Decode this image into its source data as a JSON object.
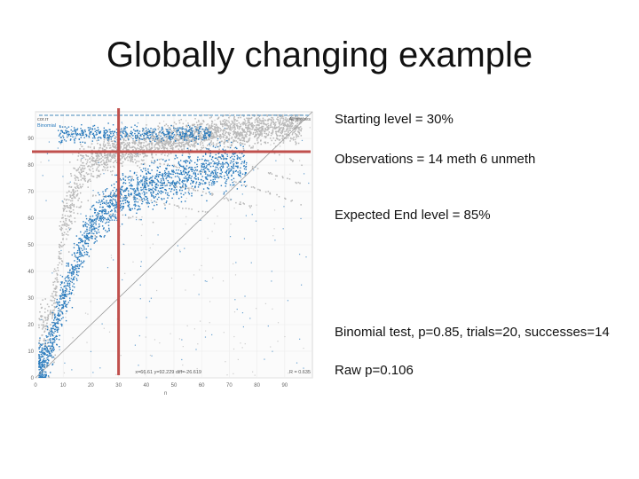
{
  "slide": {
    "title": "Globally changing example"
  },
  "notes": [
    "Starting level = 30%",
    "Observations = 14 meth 6 unmeth",
    "Expected End level = 85%",
    "Binomial test, p=0.85, trials=20, successes=14",
    "Raw p=0.106"
  ],
  "chart_data": {
    "type": "scatter",
    "legend": [
      "cor.rr",
      "Binomial",
      "All probes"
    ],
    "stats_label": "x=66.61 y=92.229 diff=-26.619",
    "r_label": "R = 0.635",
    "x_ticks": [
      0,
      10,
      20,
      30,
      40,
      50,
      60,
      70,
      80,
      90
    ],
    "y_ticks": [
      0,
      10,
      20,
      30,
      40,
      50,
      60,
      70,
      80,
      90
    ],
    "x_axis_label": "n",
    "xlim": [
      0,
      100
    ],
    "ylim": [
      0,
      100
    ],
    "reference_lines": {
      "vertical_x": 30,
      "horizontal_y": 85
    },
    "diagonal": "y = x",
    "series": [
      {
        "name": "All probes",
        "color": "#b8b8b8",
        "points": [
          [
            5,
            20
          ],
          [
            8,
            40
          ],
          [
            10,
            60
          ],
          [
            15,
            75
          ],
          [
            20,
            82
          ],
          [
            30,
            86
          ],
          [
            40,
            88
          ],
          [
            50,
            90
          ],
          [
            60,
            92
          ],
          [
            70,
            93
          ],
          [
            80,
            94
          ],
          [
            90,
            95
          ]
        ]
      },
      {
        "name": "Binomial",
        "color": "#2a7bbd",
        "points": [
          [
            3,
            5
          ],
          [
            6,
            15
          ],
          [
            10,
            30
          ],
          [
            15,
            45
          ],
          [
            20,
            58
          ],
          [
            30,
            68
          ],
          [
            40,
            72
          ],
          [
            50,
            75
          ],
          [
            60,
            78
          ],
          [
            70,
            80
          ],
          [
            25,
            95
          ],
          [
            40,
            97
          ],
          [
            55,
            97
          ]
        ]
      }
    ]
  }
}
